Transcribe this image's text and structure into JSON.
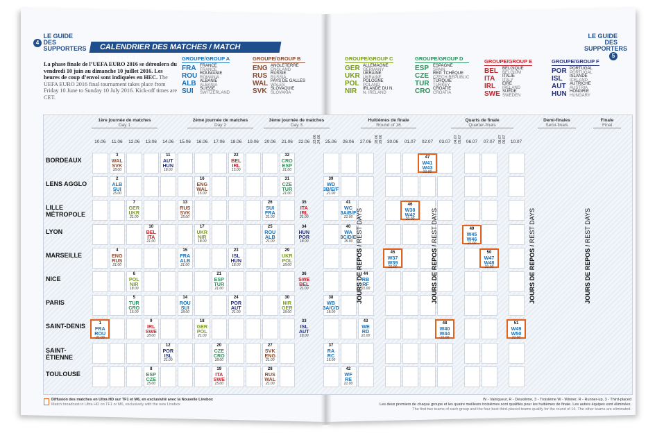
{
  "header_left": {
    "num": "4",
    "title": "LE GUIDE DES SUPPORTERS"
  },
  "header_right": {
    "num": "5",
    "title": "LE GUIDE DES SUPPORTERS"
  },
  "banner": "CALENDRIER DES MATCHES / MATCH SCHEDULE",
  "intro_fr": "La phase finale de l’UEFA EURO 2016 se déroulera du vendredi 10 juin au dimanche 10 juillet 2016. Les heures de coup d’envoi sont indiquées en HEC.",
  "intro_en": "The UEFA EURO 2016 final tournament takes place from Friday 10 June to Sunday 10 July 2016. Kick-off times are CET.",
  "groups": [
    {
      "title": "GROUPE/GROUP A",
      "color": "#1a6fb5",
      "teams": [
        [
          "FRA",
          "FRANCE",
          "FRANCE"
        ],
        [
          "ROU",
          "ROUMANIE",
          "ROMANIA"
        ],
        [
          "ALB",
          "ALBANIE",
          "ALBANIA"
        ],
        [
          "SUI",
          "SUISSE",
          "SWITZERLAND"
        ]
      ]
    },
    {
      "title": "GROUPE/GROUP B",
      "color": "#8a4a2e",
      "teams": [
        [
          "ENG",
          "ANGLETERRE",
          "ENGLAND"
        ],
        [
          "RUS",
          "RUSSIE",
          "RUSSIA"
        ],
        [
          "WAL",
          "PAYS DE GALLES",
          "WALES"
        ],
        [
          "SVK",
          "SLOVAQUIE",
          "SLOVAKIA"
        ]
      ]
    },
    {
      "title": "GROUPE/GROUP C",
      "color": "#7a9a1e",
      "teams": [
        [
          "GER",
          "ALLEMAGNE",
          "GERMANY"
        ],
        [
          "UKR",
          "UKRAINE",
          "UKRAINE"
        ],
        [
          "POL",
          "POLOGNE",
          "POLAND"
        ],
        [
          "NIR",
          "IRLANDE DU N.",
          "N. IRELAND"
        ]
      ]
    },
    {
      "title": "GROUPE/GROUP D",
      "color": "#2f8f5a",
      "teams": [
        [
          "ESP",
          "ESPAGNE",
          "SPAIN"
        ],
        [
          "CZE",
          "REP. TCHÈQUE",
          "CZECH REPUBLIC"
        ],
        [
          "TUR",
          "TURQUIE",
          "TURKEY"
        ],
        [
          "CRO",
          "CROATIE",
          "CROATIA"
        ]
      ]
    },
    {
      "title": "GROUPE/GROUP E",
      "color": "#c0262d",
      "teams": [
        [
          "BEL",
          "BELGIQUE",
          "BELGIUM"
        ],
        [
          "ITA",
          "ITALIE",
          "ITALY"
        ],
        [
          "IRL",
          "EIRE",
          "IRELAND"
        ],
        [
          "SWE",
          "SUÈDE",
          "SWEDEN"
        ]
      ]
    },
    {
      "title": "GROUPE/GROUP F",
      "color": "#25307a",
      "teams": [
        [
          "POR",
          "PORTUGAL",
          "PORTUGAL"
        ],
        [
          "ISL",
          "ISLANDE",
          "ICELAND"
        ],
        [
          "AUT",
          "AUTRICHE",
          "AUSTRIA"
        ],
        [
          "HUN",
          "HONGRIE",
          "HUNGARY"
        ]
      ]
    }
  ],
  "phases": [
    {
      "fr": "1ère journée de matches",
      "en": "Day 1"
    },
    {
      "fr": "2ème journée de matches",
      "en": "Day 2"
    },
    {
      "fr": "3ème journée de matches",
      "en": "Day 3"
    },
    {
      "fr": "Huitièmes de finale",
      "en": "Round of 16"
    },
    {
      "fr": "Quarts de finale",
      "en": "Quarter-finals"
    },
    {
      "fr": "Demi-finales",
      "en": "Semi-finals"
    },
    {
      "fr": "Finale",
      "en": "Final"
    }
  ],
  "dates": [
    "10.06",
    "11.06",
    "12.06",
    "13.06",
    "14.06",
    "15.06",
    "16.06",
    "17.06",
    "18.06",
    "19.06",
    "20.06",
    "21.06",
    "22.06",
    "23.06 24.06",
    "25.06",
    "26.06",
    "27.06",
    "28.06 29.06",
    "30.06",
    "01.07",
    "02.07",
    "03.07",
    "04.07 05.07",
    "06.07",
    "07.07",
    "08.07 09.07",
    "10.07"
  ],
  "venues": [
    "BORDEAUX",
    "LENS AGGLO",
    "LILLE MÉTROPOLE",
    "LYON",
    "MARSEILLE",
    "NICE",
    "PARIS",
    "SAINT-DENIS",
    "SAINT-ÉTIENNE",
    "TOULOUSE"
  ],
  "rest_days": {
    "fr": "JOURS DE REPOS",
    "en": "REST DAYS"
  },
  "matches": [
    {
      "n": "3",
      "t": [
        "WAL",
        "SVK"
      ],
      "h": "18.00",
      "v": 0,
      "d": 1,
      "c": "#8a4a2e"
    },
    {
      "n": "11",
      "t": [
        "AUT",
        "HUN"
      ],
      "h": "18.00",
      "v": 0,
      "d": 4,
      "c": "#25307a"
    },
    {
      "n": "22",
      "t": [
        "BEL",
        "IRL"
      ],
      "h": "15.00",
      "v": 0,
      "d": 8,
      "c": "#c0262d"
    },
    {
      "n": "32",
      "t": [
        "CRO",
        "ESP"
      ],
      "h": "21.00",
      "v": 0,
      "d": 11,
      "c": "#2f8f5a"
    },
    {
      "n": "47",
      "t": [
        "W41",
        "W43"
      ],
      "h": "21.00",
      "v": 0,
      "d": 20,
      "c": "#1a6fb5",
      "box": true
    },
    {
      "n": "2",
      "t": [
        "ALB",
        "SUI"
      ],
      "h": "15.00",
      "v": 1,
      "d": 1,
      "c": "#1a6fb5"
    },
    {
      "n": "16",
      "t": [
        "ENG",
        "WAL"
      ],
      "h": "15.00",
      "v": 1,
      "d": 6,
      "c": "#8a4a2e"
    },
    {
      "n": "31",
      "t": [
        "CZE",
        "TUR"
      ],
      "h": "21.00",
      "v": 1,
      "d": 11,
      "c": "#2f8f5a"
    },
    {
      "n": "39",
      "t": [
        "WD",
        "3B/E/F"
      ],
      "h": "21.00",
      "v": 1,
      "d": 14,
      "c": "#1a6fb5"
    },
    {
      "n": "7",
      "t": [
        "GER",
        "UKR"
      ],
      "h": "21.00",
      "v": 2,
      "d": 2,
      "c": "#7a9a1e"
    },
    {
      "n": "13",
      "t": [
        "RUS",
        "SVK"
      ],
      "h": "15.00",
      "v": 2,
      "d": 5,
      "c": "#8a4a2e"
    },
    {
      "n": "26",
      "t": [
        "SUI",
        "FRA"
      ],
      "h": "21.00",
      "v": 2,
      "d": 10,
      "c": "#1a6fb5"
    },
    {
      "n": "35",
      "t": [
        "ITA",
        "IRL"
      ],
      "h": "21.00",
      "v": 2,
      "d": 12,
      "c": "#c0262d"
    },
    {
      "n": "41",
      "t": [
        "WC",
        "3A/B/F"
      ],
      "h": "21.00",
      "v": 2,
      "d": 15,
      "c": "#1a6fb5"
    },
    {
      "n": "46",
      "t": [
        "W38",
        "W42"
      ],
      "h": "21.00",
      "v": 2,
      "d": 19,
      "c": "#1a6fb5",
      "box": true
    },
    {
      "n": "10",
      "t": [
        "BEL",
        "ITA"
      ],
      "h": "21.00",
      "v": 3,
      "d": 3,
      "c": "#c0262d"
    },
    {
      "n": "17",
      "t": [
        "UKR",
        "NIR"
      ],
      "h": "18.00",
      "v": 3,
      "d": 6,
      "c": "#7a9a1e"
    },
    {
      "n": "25",
      "t": [
        "ROU",
        "ALB"
      ],
      "h": "21.00",
      "v": 3,
      "d": 10,
      "c": "#1a6fb5"
    },
    {
      "n": "34",
      "t": [
        "HUN",
        "POR"
      ],
      "h": "18.00",
      "v": 3,
      "d": 12,
      "c": "#25307a"
    },
    {
      "n": "40",
      "t": [
        "WA",
        "3C/D/E"
      ],
      "h": "15.00",
      "v": 3,
      "d": 15,
      "c": "#1a6fb5"
    },
    {
      "n": "49",
      "t": [
        "W45",
        "W46"
      ],
      "h": "21.00",
      "v": 3,
      "d": 23,
      "c": "#1a6fb5",
      "box": true
    },
    {
      "n": "4",
      "t": [
        "ENG",
        "RUS"
      ],
      "h": "21.00",
      "v": 4,
      "d": 1,
      "c": "#8a4a2e"
    },
    {
      "n": "15",
      "t": [
        "FRA",
        "ALB"
      ],
      "h": "21.00",
      "v": 4,
      "d": 5,
      "c": "#1a6fb5"
    },
    {
      "n": "23",
      "t": [
        "ISL",
        "HUN"
      ],
      "h": "18.00",
      "v": 4,
      "d": 8,
      "c": "#25307a"
    },
    {
      "n": "29",
      "t": [
        "UKR",
        "POL"
      ],
      "h": "18.00",
      "v": 4,
      "d": 11,
      "c": "#7a9a1e"
    },
    {
      "n": "45",
      "t": [
        "W37",
        "W39"
      ],
      "h": "21.00",
      "v": 4,
      "d": 18,
      "c": "#1a6fb5",
      "box": true
    },
    {
      "n": "50",
      "t": [
        "W47",
        "W48"
      ],
      "h": "21.00",
      "v": 4,
      "d": 24,
      "c": "#1a6fb5",
      "box": true
    },
    {
      "n": "6",
      "t": [
        "POL",
        "NIR"
      ],
      "h": "18.00",
      "v": 5,
      "d": 2,
      "c": "#7a9a1e"
    },
    {
      "n": "21",
      "t": [
        "ESP",
        "TUR"
      ],
      "h": "21.00",
      "v": 5,
      "d": 7,
      "c": "#2f8f5a"
    },
    {
      "n": "36",
      "t": [
        "SWE",
        "BEL"
      ],
      "h": "21.00",
      "v": 5,
      "d": 12,
      "c": "#c0262d"
    },
    {
      "n": "44",
      "t": [
        "RB",
        "RF"
      ],
      "h": "21.00",
      "v": 5,
      "d": 16,
      "c": "#1a6fb5"
    },
    {
      "n": "5",
      "t": [
        "TUR",
        "CRO"
      ],
      "h": "15.00",
      "v": 6,
      "d": 2,
      "c": "#2f8f5a"
    },
    {
      "n": "14",
      "t": [
        "ROU",
        "SUI"
      ],
      "h": "18.00",
      "v": 6,
      "d": 5,
      "c": "#1a6fb5"
    },
    {
      "n": "24",
      "t": [
        "POR",
        "AUT"
      ],
      "h": "21.00",
      "v": 6,
      "d": 8,
      "c": "#25307a"
    },
    {
      "n": "30",
      "t": [
        "NIR",
        "GER"
      ],
      "h": "18.00",
      "v": 6,
      "d": 11,
      "c": "#7a9a1e"
    },
    {
      "n": "38",
      "t": [
        "WB",
        "3A/C/D"
      ],
      "h": "18.00",
      "v": 6,
      "d": 14,
      "c": "#1a6fb5"
    },
    {
      "n": "1",
      "t": [
        "FRA",
        "ROU"
      ],
      "h": "21.00",
      "v": 7,
      "d": 0,
      "c": "#1a6fb5",
      "box": true
    },
    {
      "n": "9",
      "t": [
        "IRL",
        "SWE"
      ],
      "h": "18.00",
      "v": 7,
      "d": 3,
      "c": "#c0262d"
    },
    {
      "n": "18",
      "t": [
        "GER",
        "POL"
      ],
      "h": "21.00",
      "v": 7,
      "d": 6,
      "c": "#7a9a1e"
    },
    {
      "n": "33",
      "t": [
        "ISL",
        "AUT"
      ],
      "h": "18.00",
      "v": 7,
      "d": 12,
      "c": "#25307a"
    },
    {
      "n": "43",
      "t": [
        "WE",
        "RD"
      ],
      "h": "21.00",
      "v": 7,
      "d": 16,
      "c": "#1a6fb5"
    },
    {
      "n": "48",
      "t": [
        "W40",
        "W44"
      ],
      "h": "21.00",
      "v": 7,
      "d": 21,
      "c": "#1a6fb5",
      "box": true
    },
    {
      "n": "51",
      "t": [
        "W49",
        "W50"
      ],
      "h": "21.00",
      "v": 7,
      "d": 26,
      "c": "#1a6fb5",
      "box": true
    },
    {
      "n": "12",
      "t": [
        "POR",
        "ISL"
      ],
      "h": "21.00",
      "v": 8,
      "d": 4,
      "c": "#25307a"
    },
    {
      "n": "20",
      "t": [
        "CZE",
        "CRO"
      ],
      "h": "18.00",
      "v": 8,
      "d": 7,
      "c": "#2f8f5a"
    },
    {
      "n": "27",
      "t": [
        "SVK",
        "ENG"
      ],
      "h": "21.00",
      "v": 8,
      "d": 10,
      "c": "#8a4a2e"
    },
    {
      "n": "37",
      "t": [
        "RA",
        "RC"
      ],
      "h": "15.00",
      "v": 8,
      "d": 14,
      "c": "#1a6fb5"
    },
    {
      "n": "8",
      "t": [
        "ESP",
        "CZE"
      ],
      "h": "15.00",
      "v": 9,
      "d": 3,
      "c": "#2f8f5a"
    },
    {
      "n": "19",
      "t": [
        "ITA",
        "SWE"
      ],
      "h": "15.00",
      "v": 9,
      "d": 7,
      "c": "#c0262d"
    },
    {
      "n": "28",
      "t": [
        "RUS",
        "WAL"
      ],
      "h": "21.00",
      "v": 9,
      "d": 10,
      "c": "#8a4a2e"
    },
    {
      "n": "42",
      "t": [
        "WF",
        "RE"
      ],
      "h": "21.00",
      "v": 9,
      "d": 15,
      "c": "#1a6fb5"
    }
  ],
  "legend_key": "W - Vainqueur, R - Deuxième, 3 - Troisième  W - Winner, R - Runner-up, 3 - Third-placed",
  "footer_fr": "Diffusion des matches en Ultra HD sur TF1 et M6, en exclusivité avec la Nouvelle Livebox",
  "footer_en": "Match broadcast in Ultra HD on TF1 or M6, exclusively with the new Livebox",
  "qualify_fr": "Les deux premiers de chaque groupe et les quatre meilleurs troisièmes sont qualifiés pour les huitièmes de finale. Les autres équipes sont éliminées.",
  "qualify_en": "The first two teams of each group and the four best third-placed teams qualify for the round of 16. The other teams are eliminated."
}
